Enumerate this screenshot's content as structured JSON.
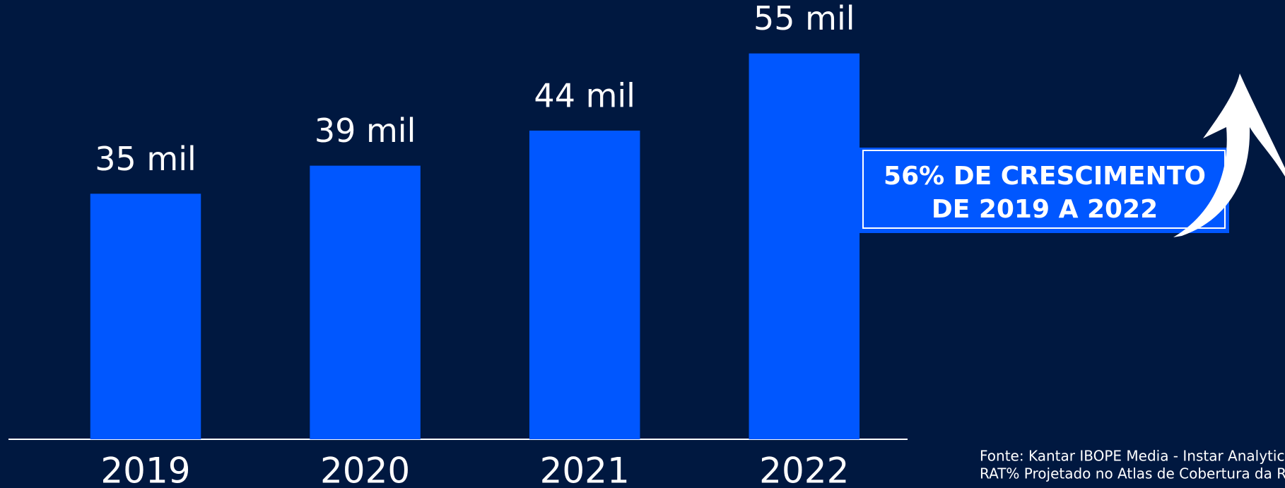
{
  "chart_data": {
    "type": "bar",
    "categories": [
      "2019",
      "2020",
      "2021",
      "2022"
    ],
    "values": [
      35,
      39,
      44,
      55
    ],
    "value_labels": [
      "35 mil",
      "39 mil",
      "44 mil",
      "55 mil"
    ],
    "color": "#0057ff",
    "ylim": [
      0,
      60
    ],
    "annotation": [
      "56% DE CRESCIMENTO",
      "DE 2019 A 2022"
    ],
    "source": [
      "Fonte: Kantar IBOPE Media - Instar Analytics",
      "RAT% Projetado no Atlas de Cobertura da R"
    ]
  }
}
